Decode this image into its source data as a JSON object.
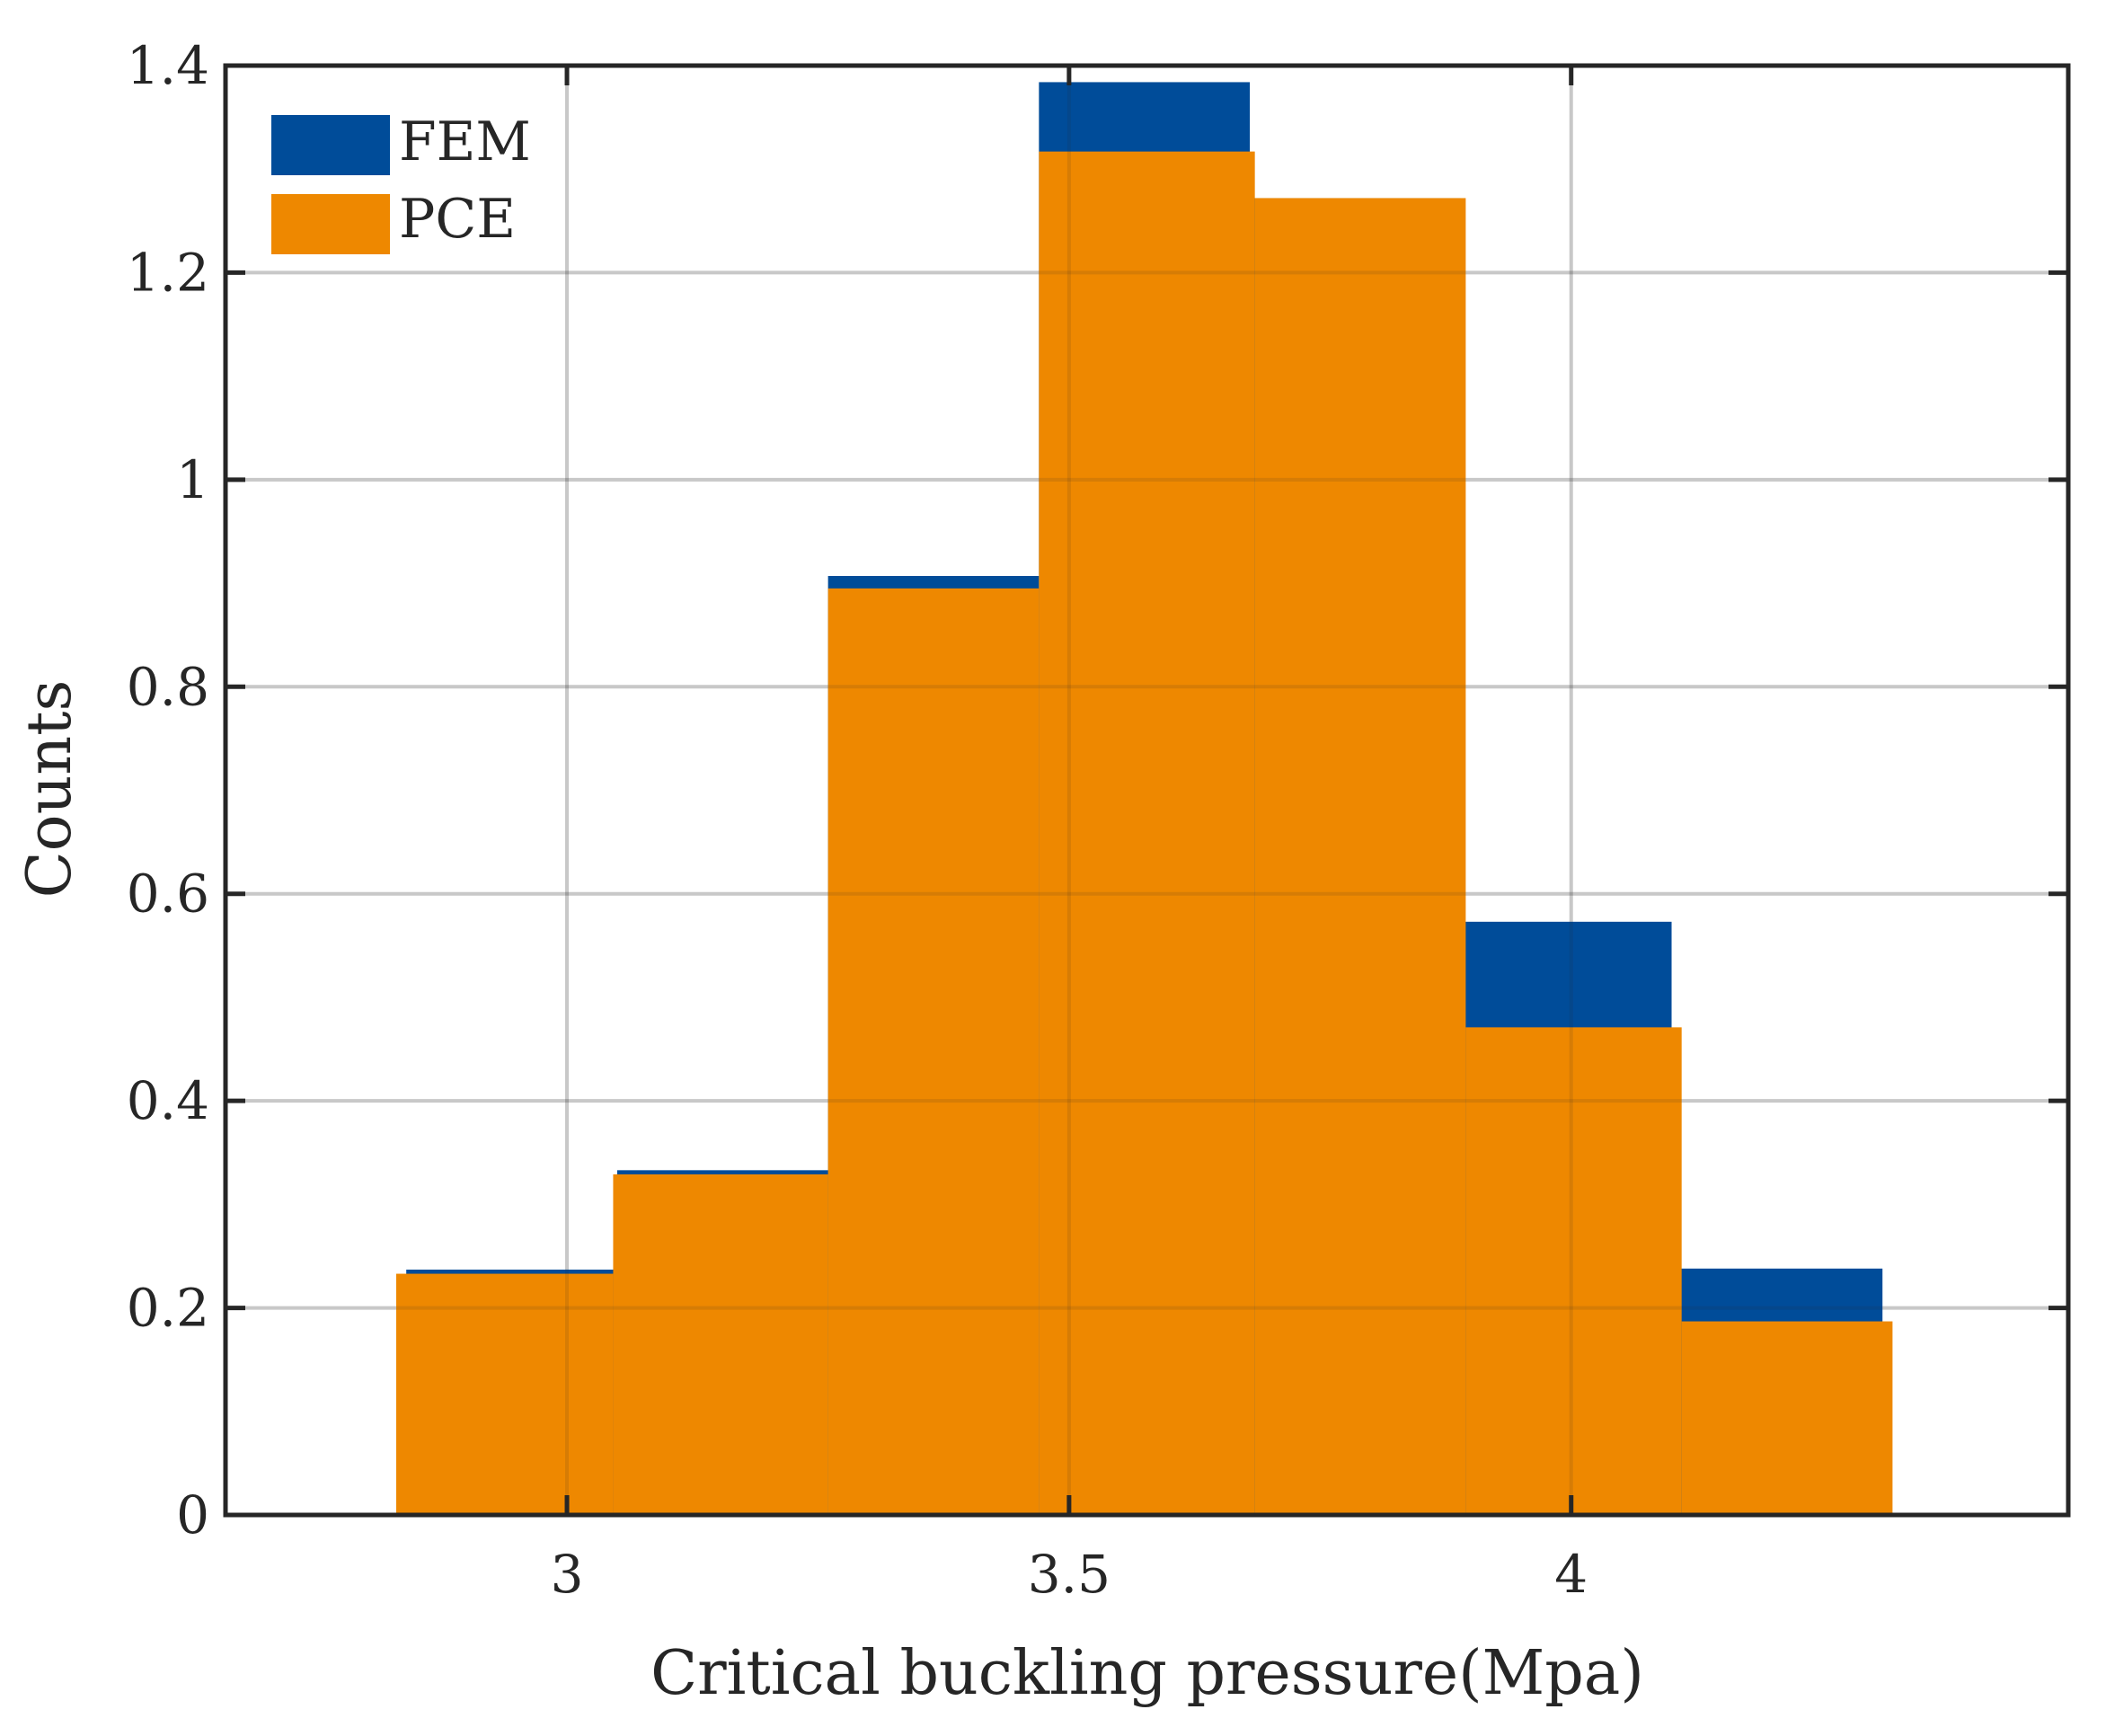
{
  "chart_data": {
    "type": "bar",
    "xlabel": "Critical buckling pressure(Mpa)",
    "ylabel": "Counts",
    "xlim": [
      2.66,
      4.495
    ],
    "ylim": [
      0,
      1.4
    ],
    "x_ticks": [
      {
        "value": 3,
        "label": "3"
      },
      {
        "value": 3.5,
        "label": "3.5"
      },
      {
        "value": 4,
        "label": "4"
      }
    ],
    "y_ticks": [
      {
        "value": 0,
        "label": "0"
      },
      {
        "value": 0.2,
        "label": "0.2"
      },
      {
        "value": 0.4,
        "label": "0.4"
      },
      {
        "value": 0.6,
        "label": "0.6"
      },
      {
        "value": 0.8,
        "label": "0.8"
      },
      {
        "value": 1,
        "label": "1"
      },
      {
        "value": 1.2,
        "label": "1.2"
      },
      {
        "value": 1.4,
        "label": "1.4"
      }
    ],
    "grid": true,
    "legend_position": "top-left",
    "series": [
      {
        "name": "FEM",
        "color": "#004C99",
        "bins": [
          {
            "x0": 2.84,
            "x1": 3.05,
            "value": 0.237
          },
          {
            "x0": 3.05,
            "x1": 3.26,
            "value": 0.333
          },
          {
            "x0": 3.26,
            "x1": 3.47,
            "value": 0.907
          },
          {
            "x0": 3.47,
            "x1": 3.68,
            "value": 1.384
          },
          {
            "x0": 3.68,
            "x1": 3.89,
            "value": 1.272
          },
          {
            "x0": 3.89,
            "x1": 4.1,
            "value": 0.573
          },
          {
            "x0": 4.1,
            "x1": 4.31,
            "value": 0.238
          }
        ]
      },
      {
        "name": "PCE",
        "color": "#EE8800",
        "bins": [
          {
            "x0": 2.83,
            "x1": 3.046,
            "value": 0.233
          },
          {
            "x0": 3.046,
            "x1": 3.26,
            "value": 0.329
          },
          {
            "x0": 3.26,
            "x1": 3.47,
            "value": 0.895
          },
          {
            "x0": 3.47,
            "x1": 3.685,
            "value": 1.317
          },
          {
            "x0": 3.685,
            "x1": 3.895,
            "value": 1.272
          },
          {
            "x0": 3.895,
            "x1": 4.11,
            "value": 0.471
          },
          {
            "x0": 4.11,
            "x1": 4.32,
            "value": 0.187
          }
        ]
      }
    ]
  }
}
